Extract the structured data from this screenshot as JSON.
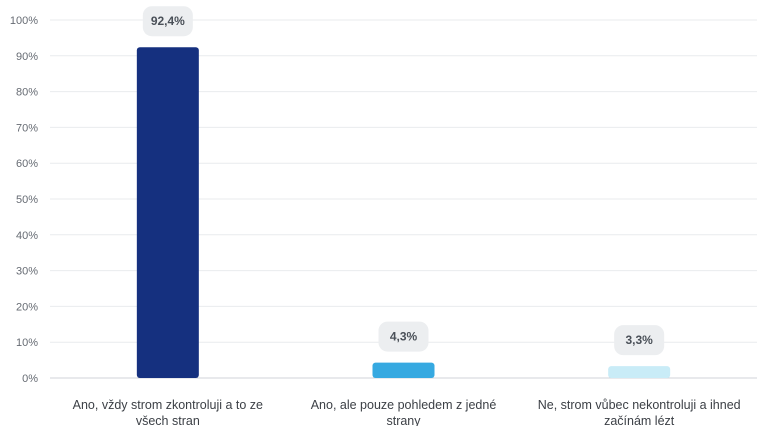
{
  "chart_data": {
    "type": "bar",
    "categories": [
      [
        "Ano, vždy strom zkontroluji a to ze",
        "všech stran"
      ],
      [
        "Ano, ale pouze pohledem z jedné",
        "strany"
      ],
      [
        "Ne, strom vůbec nekontroluji a ihned",
        "začínám lézt"
      ]
    ],
    "values": [
      92.4,
      4.3,
      3.3
    ],
    "value_labels": [
      "92,4%",
      "4,3%",
      "3,3%"
    ],
    "bar_colors": [
      "#15307f",
      "#36a9e1",
      "#c9ecf7"
    ],
    "y_ticks": [
      "0%",
      "10%",
      "20%",
      "30%",
      "40%",
      "50%",
      "60%",
      "70%",
      "80%",
      "90%",
      "100%"
    ],
    "ylim": [
      0,
      100
    ],
    "grid": "horizontal",
    "title": "",
    "xlabel": "",
    "ylabel": ""
  }
}
